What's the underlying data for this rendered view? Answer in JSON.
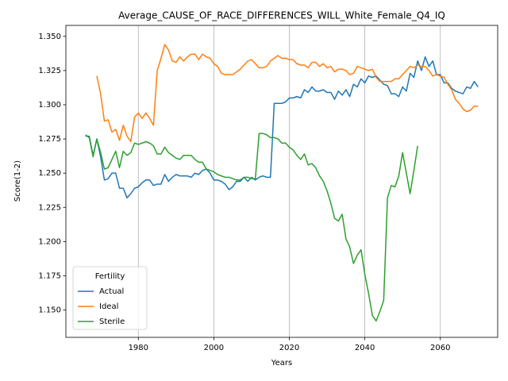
{
  "chart_data": {
    "type": "line",
    "title": "Average_CAUSE_OF_RACE_DIFFERENCES_WILL_White_Female_Q4_IQ",
    "xlabel": "Years",
    "ylabel": "Score(1-2)",
    "x": [
      1966,
      1967,
      1968,
      1969,
      1970,
      1971,
      1972,
      1973,
      1974,
      1975,
      1976,
      1977,
      1978,
      1979,
      1980,
      1981,
      1982,
      1983,
      1984,
      1985,
      1986,
      1987,
      1988,
      1989,
      1990,
      1991,
      1992,
      1993,
      1994,
      1995,
      1996,
      1997,
      1998,
      1999,
      2000,
      2001,
      2002,
      2003,
      2004,
      2005,
      2006,
      2007,
      2008,
      2009,
      2010,
      2011,
      2012,
      2013,
      2014,
      2015,
      2016,
      2017,
      2018,
      2019,
      2020,
      2021,
      2022,
      2023,
      2024,
      2025,
      2026,
      2027,
      2028,
      2029,
      2030,
      2031,
      2032,
      2033,
      2034,
      2035,
      2036,
      2037,
      2038,
      2039,
      2040,
      2041,
      2042,
      2043,
      2044,
      2045,
      2046,
      2047,
      2048,
      2049,
      2050,
      2051,
      2052,
      2053,
      2054,
      2055,
      2056,
      2057,
      2058,
      2059,
      2060,
      2061,
      2062,
      2063,
      2064,
      2065,
      2066,
      2067,
      2068,
      2069,
      2070
    ],
    "series": [
      {
        "name": "Actual",
        "color": "#1f77b4",
        "values": [
          1.277,
          1.277,
          1.263,
          1.275,
          1.262,
          1.245,
          1.246,
          1.25,
          1.25,
          1.239,
          1.239,
          1.232,
          1.235,
          1.239,
          1.24,
          1.243,
          1.245,
          1.245,
          1.241,
          1.242,
          1.242,
          1.249,
          1.244,
          1.247,
          1.249,
          1.248,
          1.248,
          1.248,
          1.247,
          1.25,
          1.249,
          1.252,
          1.253,
          1.25,
          1.245,
          1.245,
          1.244,
          1.242,
          1.238,
          1.24,
          1.244,
          1.244,
          1.247,
          1.244,
          1.247,
          1.245,
          1.247,
          1.248,
          1.247,
          1.247,
          1.301,
          1.301,
          1.301,
          1.302,
          1.305,
          1.305,
          1.306,
          1.305,
          1.311,
          1.309,
          1.313,
          1.31,
          1.31,
          1.311,
          1.309,
          1.309,
          1.304,
          1.31,
          1.307,
          1.311,
          1.306,
          1.315,
          1.313,
          1.319,
          1.316,
          1.321,
          1.32,
          1.321,
          1.318,
          1.315,
          1.314,
          1.308,
          1.308,
          1.306,
          1.313,
          1.31,
          1.323,
          1.32,
          1.332,
          1.325,
          1.335,
          1.328,
          1.332,
          1.322,
          1.322,
          1.316,
          1.316,
          1.312,
          1.31,
          1.309,
          1.308,
          1.313,
          1.312,
          1.317,
          1.313
        ]
      },
      {
        "name": "Ideal",
        "color": "#ff7f0e",
        "values": [
          null,
          null,
          null,
          1.321,
          1.308,
          1.288,
          1.289,
          1.28,
          1.282,
          1.274,
          1.285,
          1.277,
          1.273,
          1.291,
          1.294,
          1.29,
          1.294,
          1.29,
          1.285,
          1.325,
          1.334,
          1.344,
          1.34,
          1.332,
          1.331,
          1.335,
          1.332,
          1.335,
          1.337,
          1.337,
          1.333,
          1.337,
          1.335,
          1.334,
          1.33,
          1.328,
          1.323,
          1.322,
          1.322,
          1.322,
          1.324,
          1.326,
          1.329,
          1.332,
          1.333,
          1.33,
          1.327,
          1.327,
          1.328,
          1.332,
          1.334,
          1.336,
          1.334,
          1.334,
          1.333,
          1.333,
          1.33,
          1.329,
          1.329,
          1.327,
          1.331,
          1.331,
          1.328,
          1.33,
          1.327,
          1.328,
          1.324,
          1.326,
          1.326,
          1.325,
          1.322,
          1.323,
          1.328,
          1.327,
          1.326,
          1.325,
          1.326,
          1.32,
          1.317,
          1.317,
          1.317,
          1.317,
          1.319,
          1.319,
          1.322,
          1.325,
          1.328,
          1.327,
          1.329,
          1.328,
          1.328,
          1.325,
          1.321,
          1.322,
          1.321,
          1.32,
          1.315,
          1.311,
          1.304,
          1.301,
          1.297,
          1.295,
          1.296,
          1.299,
          1.299
        ]
      },
      {
        "name": "Sterile",
        "color": "#2ca02c",
        "values": [
          1.278,
          1.276,
          1.262,
          1.275,
          1.265,
          1.253,
          1.254,
          1.26,
          1.266,
          1.254,
          1.266,
          1.263,
          1.265,
          1.272,
          1.271,
          1.272,
          1.273,
          1.272,
          1.27,
          1.264,
          1.264,
          1.269,
          1.265,
          1.263,
          1.261,
          1.26,
          1.263,
          1.263,
          1.263,
          1.26,
          1.258,
          1.258,
          1.253,
          1.252,
          1.251,
          1.249,
          1.248,
          1.247,
          1.247,
          1.246,
          1.245,
          1.245,
          1.247,
          1.247,
          1.246,
          1.246,
          1.279,
          1.279,
          1.278,
          1.276,
          1.276,
          1.275,
          1.272,
          1.272,
          1.269,
          1.267,
          1.263,
          1.26,
          1.264,
          1.256,
          1.257,
          1.254,
          1.248,
          1.244,
          1.237,
          1.228,
          1.217,
          1.215,
          1.22,
          1.202,
          1.196,
          1.184,
          1.19,
          1.194,
          1.176,
          1.162,
          1.146,
          1.142,
          1.149,
          1.157,
          1.232,
          1.241,
          1.24,
          1.248,
          1.265,
          1.25,
          1.235,
          1.252,
          1.27,
          null,
          null,
          null,
          null,
          null,
          null,
          null,
          null,
          null,
          null,
          null,
          null,
          null,
          null,
          null,
          null
        ]
      }
    ],
    "xlim": [
      1960.8,
      2075.2
    ],
    "ylim": [
      1.13,
      1.358
    ],
    "xticks": [
      1980,
      2000,
      2020,
      2040,
      2060
    ],
    "yticks": [
      {
        "value": 1.15,
        "label": "1.150"
      },
      {
        "value": 1.175,
        "label": "1.175"
      },
      {
        "value": 1.2,
        "label": "1.200"
      },
      {
        "value": 1.225,
        "label": "1.225"
      },
      {
        "value": 1.25,
        "label": "1.250"
      },
      {
        "value": 1.275,
        "label": "1.275"
      },
      {
        "value": 1.3,
        "label": "1.300"
      },
      {
        "value": 1.325,
        "label": "1.325"
      },
      {
        "value": 1.35,
        "label": "1.350"
      }
    ],
    "grid": "x",
    "legend": {
      "title": "Fertility",
      "loc": "lower left"
    }
  }
}
